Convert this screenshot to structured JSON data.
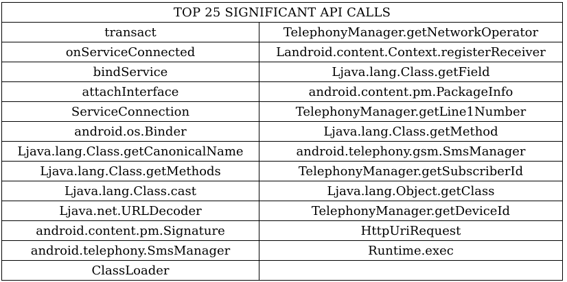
{
  "table": {
    "title": "TOP 25 SIGNIFICANT API CALLS",
    "rows": [
      [
        "transact",
        "TelephonyManager.getNetworkOperator"
      ],
      [
        "onServiceConnected",
        "Landroid.content.Context.registerReceiver"
      ],
      [
        "bindService",
        "Ljava.lang.Class.getField"
      ],
      [
        "attachInterface",
        "android.content.pm.PackageInfo"
      ],
      [
        "ServiceConnection",
        "TelephonyManager.getLine1Number"
      ],
      [
        "android.os.Binder",
        "Ljava.lang.Class.getMethod"
      ],
      [
        "Ljava.lang.Class.getCanonicalName",
        "android.telephony.gsm.SmsManager"
      ],
      [
        "Ljava.lang.Class.getMethods",
        "TelephonyManager.getSubscriberId"
      ],
      [
        "Ljava.lang.Class.cast",
        "Ljava.lang.Object.getClass"
      ],
      [
        "Ljava.net.URLDecoder",
        "TelephonyManager.getDeviceId"
      ],
      [
        "android.content.pm.Signature",
        "HttpUriRequest"
      ],
      [
        "android.telephony.SmsManager",
        "Runtime.exec"
      ],
      [
        "ClassLoader",
        ""
      ]
    ]
  }
}
